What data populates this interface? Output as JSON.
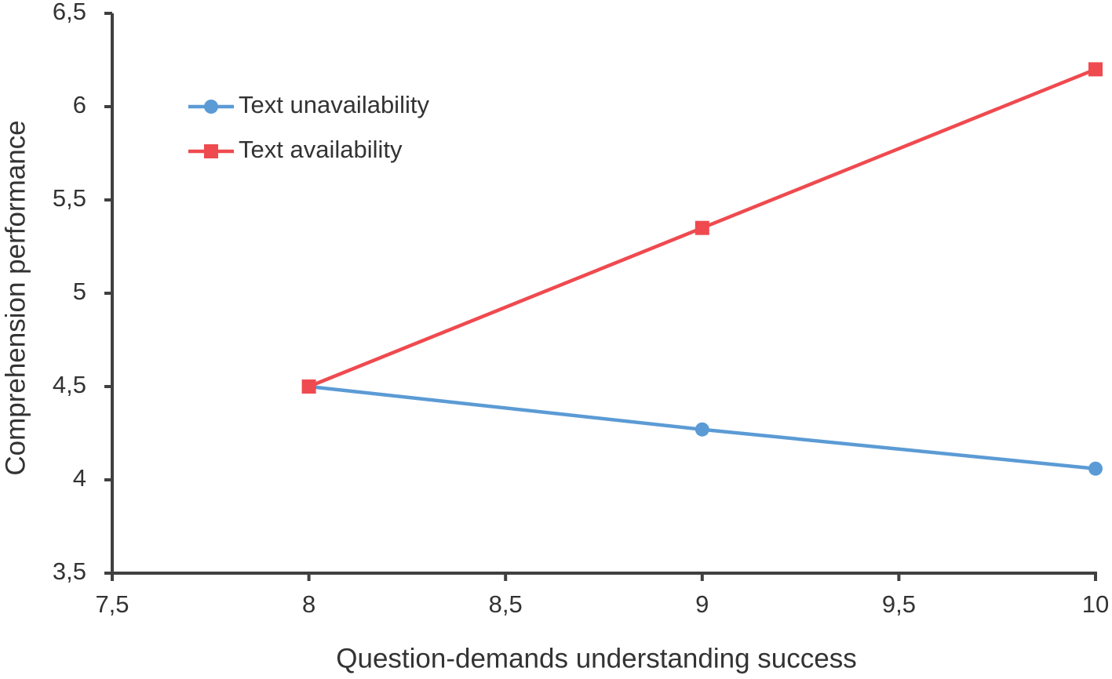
{
  "chart_data": {
    "type": "line",
    "x_label": "Question-demands understanding success",
    "y_label": "Comprehension performance",
    "x": [
      8,
      9,
      10
    ],
    "series": [
      {
        "name": "Text unavailability",
        "color": "#5b9bd5",
        "marker": "circle",
        "values": [
          4.5,
          4.27,
          4.06
        ]
      },
      {
        "name": "Text availability",
        "color": "#ef4a4f",
        "marker": "square",
        "values": [
          4.5,
          5.35,
          6.2
        ]
      }
    ],
    "xlim": [
      7.5,
      10
    ],
    "xticks": [
      {
        "value": 7.5,
        "label": "7,5"
      },
      8,
      {
        "value": 8.5,
        "label": "8,5"
      },
      9,
      {
        "value": 9.5,
        "label": "9,5"
      },
      10
    ],
    "ylim": [
      3.5,
      6.5
    ],
    "yticks": [
      {
        "value": 3.5,
        "label": "3,5"
      },
      4,
      {
        "value": 4.5,
        "label": "4,5"
      },
      5,
      {
        "value": 5.5,
        "label": "5,5"
      },
      6,
      {
        "value": 6.5,
        "label": "6,5"
      }
    ],
    "grid": false,
    "legend": "upper left"
  }
}
